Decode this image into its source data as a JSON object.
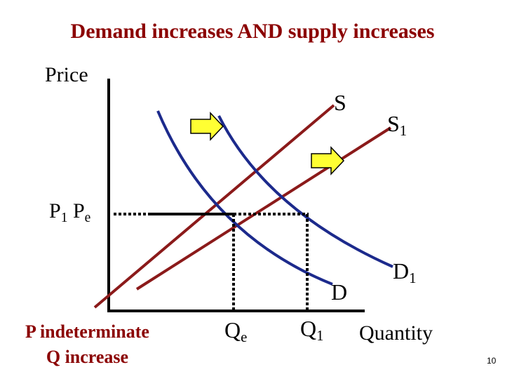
{
  "title": "Demand increases AND supply increases",
  "axis": {
    "y_label": "Price",
    "x_label": "Quantity"
  },
  "curves": {
    "s": {
      "label": "S",
      "color": "#8b1a1a"
    },
    "s1": {
      "label": "S",
      "sub": "1",
      "color": "#8b1a1a"
    },
    "d": {
      "label": "D",
      "color": "#1c2a8c"
    },
    "d1": {
      "label": "D",
      "sub": "1",
      "color": "#1c2a8c"
    }
  },
  "price_labels": {
    "p1": "P",
    "p1_sub": "1",
    "pe": "P",
    "pe_sub": "e"
  },
  "quantity_labels": {
    "qe": "Q",
    "qe_sub": "e",
    "q1": "Q",
    "q1_sub": "1"
  },
  "shift_arrow_color": "#ffff33",
  "note": {
    "line1": "P indeterminate",
    "line2": "Q increase"
  },
  "page_number": "10"
}
